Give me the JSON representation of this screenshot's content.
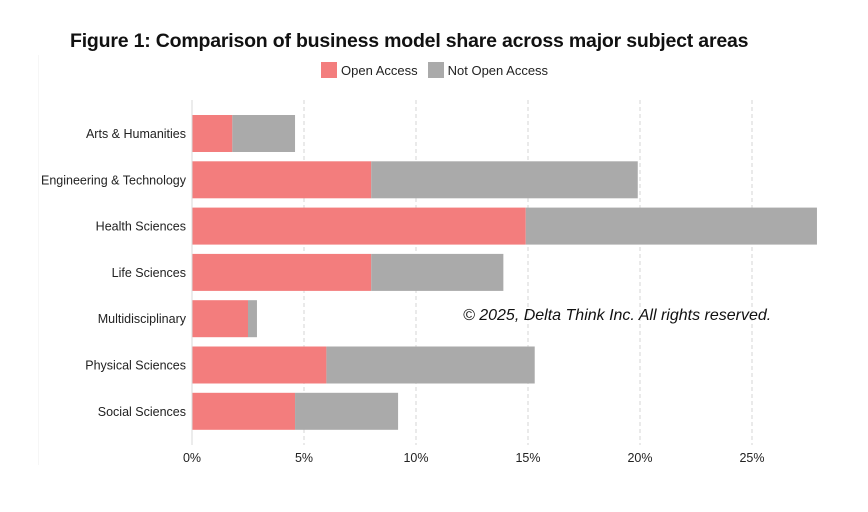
{
  "chart_data": {
    "type": "bar",
    "orientation": "horizontal",
    "stacked": true,
    "title": "Figure 1: Comparison of business model share across major subject areas",
    "xlabel": "",
    "ylabel": "",
    "xlim": [
      0,
      28
    ],
    "x_ticks": [
      0,
      5,
      10,
      15,
      20,
      25
    ],
    "x_tick_labels": [
      "0%",
      "5%",
      "10%",
      "15%",
      "20%",
      "25%"
    ],
    "grid": "vertical dashed",
    "legend_position": "top-center",
    "categories": [
      "Arts & Humanities",
      "Engineering & Technology",
      "Health Sciences",
      "Life Sciences",
      "Multidisciplinary",
      "Physical Sciences",
      "Social Sciences"
    ],
    "series": [
      {
        "name": "Open Access",
        "color": "#f37d7d",
        "values": [
          1.8,
          8.0,
          14.9,
          8.0,
          2.5,
          6.0,
          4.6
        ]
      },
      {
        "name": "Not Open Access",
        "color": "#aaaaaa",
        "values": [
          2.8,
          11.9,
          13.0,
          5.9,
          0.4,
          9.3,
          4.6
        ]
      }
    ],
    "annotation": "© 2025, Delta Think Inc. All rights reserved."
  }
}
